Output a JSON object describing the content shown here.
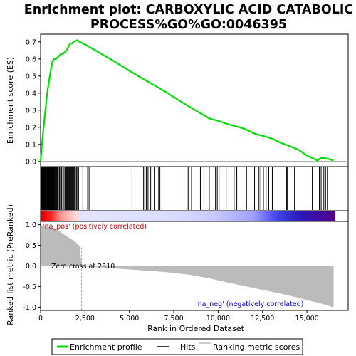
{
  "chart_data": {
    "type": "line",
    "title_line1": "Enrichment plot: CARBOXYLIC ACID CATABOLIC",
    "title_line2": "PROCESS%GO%GO:0046395",
    "xlabel": "Rank in Ordered Dataset",
    "ylabel_top": "Enrichment score (ES)",
    "ylabel_bottom": "Ranked list metric (PreRanked)",
    "xlim": [
      0,
      16600
    ],
    "es_ylim": [
      -0.03,
      0.745
    ],
    "metric_ylim": [
      -1.08,
      1.08
    ],
    "x_ticks": [
      0,
      2500,
      5000,
      7500,
      10000,
      12500,
      15000
    ],
    "x_tick_labels": [
      "0",
      "2,500",
      "5,000",
      "7,500",
      "10,000",
      "12,500",
      "15,000"
    ],
    "es_ticks": [
      0.0,
      0.1,
      0.2,
      0.3,
      0.4,
      0.5,
      0.6,
      0.7
    ],
    "es_tick_labels": [
      "0.0",
      "0.1",
      "0.2",
      "0.3",
      "0.4",
      "0.5",
      "0.6",
      "0.7"
    ],
    "metric_ticks": [
      1.0,
      0.5,
      0.0,
      -0.5,
      -1.0
    ],
    "metric_tick_labels": [
      "1.0",
      "0.5",
      "0.0",
      "-0.5",
      "-1.0"
    ],
    "enrichment_profile": {
      "x": [
        0,
        60,
        120,
        200,
        280,
        360,
        440,
        520,
        600,
        680,
        760,
        860,
        960,
        1060,
        1160,
        1260,
        1360,
        1460,
        1560,
        1660,
        1760,
        1860,
        1960,
        2060,
        2200,
        2500,
        3000,
        3500,
        4000,
        4500,
        5000,
        5500,
        6000,
        6500,
        7000,
        7500,
        8000,
        8500,
        9000,
        9500,
        10000,
        10500,
        11000,
        11200,
        11500,
        12000,
        12300,
        12600,
        13000,
        13500,
        13900,
        14200,
        14500,
        15000,
        15300,
        15600,
        15700,
        15800,
        16000,
        16200,
        16500
      ],
      "y": [
        0.0,
        0.08,
        0.15,
        0.23,
        0.31,
        0.39,
        0.45,
        0.5,
        0.55,
        0.59,
        0.6,
        0.6,
        0.61,
        0.62,
        0.63,
        0.63,
        0.64,
        0.65,
        0.67,
        0.69,
        0.69,
        0.7,
        0.705,
        0.71,
        0.7,
        0.685,
        0.655,
        0.625,
        0.595,
        0.563,
        0.531,
        0.5,
        0.47,
        0.44,
        0.41,
        0.377,
        0.344,
        0.313,
        0.282,
        0.252,
        0.238,
        0.22,
        0.205,
        0.2,
        0.19,
        0.165,
        0.155,
        0.148,
        0.135,
        0.11,
        0.095,
        0.083,
        0.07,
        0.035,
        0.02,
        0.005,
        0.015,
        0.02,
        0.02,
        0.015,
        0.005
      ]
    },
    "hits": [
      20,
      60,
      90,
      120,
      150,
      180,
      210,
      240,
      270,
      300,
      320,
      340,
      360,
      380,
      400,
      420,
      440,
      460,
      490,
      520,
      550,
      580,
      610,
      640,
      670,
      700,
      730,
      760,
      800,
      840,
      880,
      920,
      960,
      1000,
      1060,
      1120,
      1180,
      1250,
      1320,
      1380,
      1420,
      1460,
      1500,
      1540,
      1580,
      1620,
      1660,
      1700,
      1740,
      1780,
      1820,
      1860,
      1900,
      1960,
      2020,
      2080,
      2140,
      2380,
      2650,
      2730,
      5150,
      5800,
      5870,
      5950,
      6050,
      6200,
      6400,
      6650,
      6720,
      8250,
      8330,
      8500,
      9000,
      9200,
      9500,
      9850,
      9950,
      10050,
      10450,
      10900,
      11050,
      11600,
      12050,
      12300,
      12400,
      12550,
      12700,
      12850,
      13050,
      13850,
      13900,
      14300,
      15300,
      15700,
      15800,
      15950,
      16050,
      16150
    ],
    "metric": {
      "x": [
        0,
        80,
        200,
        400,
        600,
        800,
        1000,
        1200,
        1400,
        1600,
        1800,
        2000,
        2200,
        2310,
        2400,
        2800,
        3500,
        4500,
        5500,
        6500,
        7500,
        8500,
        9500,
        10500,
        11500,
        12500,
        13500,
        14500,
        15200,
        15700,
        16100,
        16300,
        16500
      ],
      "y": [
        1.0,
        0.98,
        0.97,
        0.95,
        0.93,
        0.9,
        0.86,
        0.8,
        0.74,
        0.68,
        0.63,
        0.57,
        0.48,
        0.0,
        -0.01,
        -0.02,
        -0.04,
        -0.07,
        -0.1,
        -0.13,
        -0.17,
        -0.22,
        -0.3,
        -0.4,
        -0.49,
        -0.58,
        -0.67,
        -0.77,
        -0.85,
        -0.9,
        -0.95,
        -0.98,
        -1.0
      ]
    },
    "zero_cross_x": 2310,
    "zero_cross_label": "Zero cross at 2310",
    "pos_label": "'na_pos' (positively correlated)",
    "neg_label": "'na_neg' (negatively correlated)",
    "colors": {
      "profile": "#00dd00",
      "hits": "#000000",
      "pos_label": "#cc0000",
      "neg_label": "#0000cc",
      "metric_fill": "#bbbbbb",
      "zero_line": "#bbbbbb",
      "frame": "#000000"
    },
    "legend": {
      "placement": "bottom",
      "items": [
        {
          "label": "Enrichment profile",
          "style": "green-line"
        },
        {
          "label": "Hits",
          "style": "black-line"
        },
        {
          "label": "Ranking metric scores",
          "style": "gray-line"
        }
      ]
    }
  }
}
